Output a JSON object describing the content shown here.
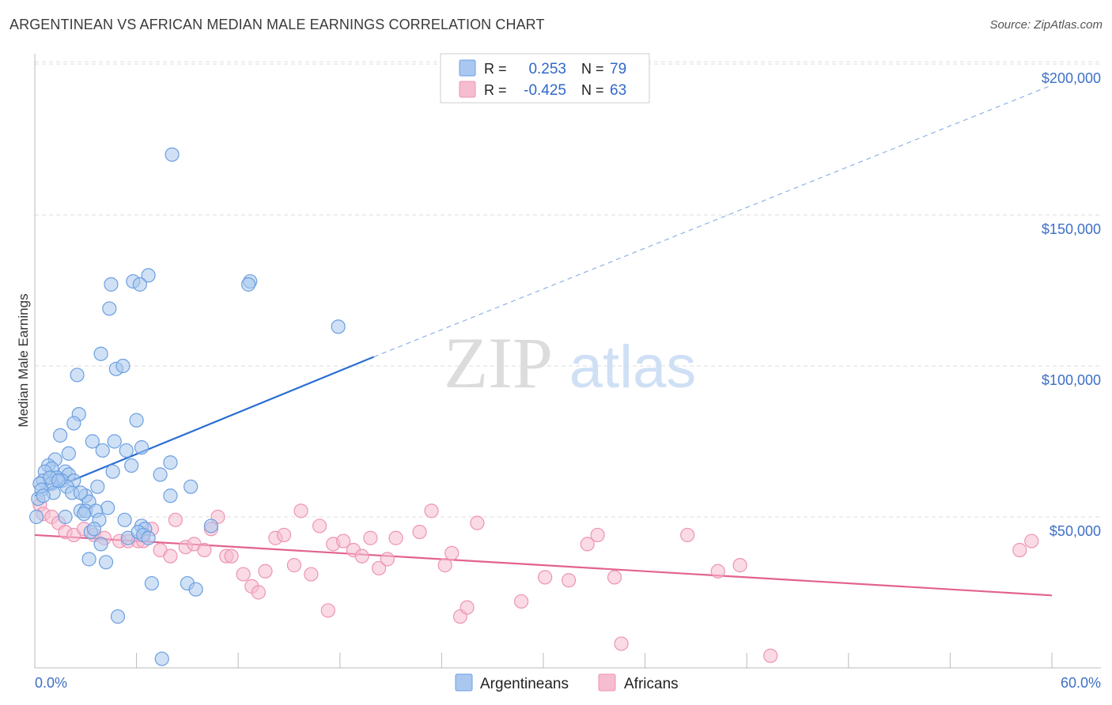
{
  "title": "ARGENTINEAN VS AFRICAN MEDIAN MALE EARNINGS CORRELATION CHART",
  "source": "Source: ZipAtlas.com",
  "watermark": {
    "zip": "ZIP",
    "atlas": "atlas"
  },
  "colors": {
    "blue_fill": "#aac8ef",
    "blue_stroke": "#6b9fe0",
    "blue_line": "#2a6ed2",
    "pink_fill": "#f6bcd0",
    "pink_stroke": "#ee94b2",
    "pink_line": "#e2628f",
    "grid": "#dddddd"
  },
  "chart_data": {
    "type": "scatter",
    "title": "ARGENTINEAN VS AFRICAN MEDIAN MALE EARNINGS CORRELATION CHART",
    "xlabel": "",
    "ylabel": "Median Male Earnings",
    "xlim": [
      0,
      60
    ],
    "ylim": [
      0,
      210000
    ],
    "x_tick_labels": [
      "0.0%",
      "60.0%"
    ],
    "y_ticks": [
      50000,
      100000,
      150000,
      200000
    ],
    "y_tick_labels": [
      "$50,000",
      "$100,000",
      "$150,000",
      "$200,000"
    ],
    "grid": true,
    "legend": {
      "position": "top-center",
      "rows": [
        {
          "r_label": "R =",
          "r_value": "0.253",
          "n_label": "N =",
          "n_value": "79"
        },
        {
          "r_label": "R =",
          "r_value": "-0.425",
          "n_label": "N =",
          "n_value": "63"
        }
      ]
    },
    "series": [
      {
        "name": "Argentineans",
        "r": 0.253,
        "n": 79,
        "trend": {
          "x0": 0,
          "y0": 57000,
          "x1": 20,
          "y1": 103000,
          "dash_to_x": 60,
          "dash_to_y": 193000
        },
        "points": [
          [
            8.1,
            170000
          ],
          [
            6.7,
            130000
          ],
          [
            5.8,
            128000
          ],
          [
            4.5,
            127000
          ],
          [
            6.2,
            127000
          ],
          [
            12.7,
            128000
          ],
          [
            12.6,
            127000
          ],
          [
            17.9,
            113000
          ],
          [
            4.4,
            119000
          ],
          [
            3.9,
            104000
          ],
          [
            2.5,
            97000
          ],
          [
            4.8,
            99000
          ],
          [
            5.2,
            100000
          ],
          [
            2.6,
            84000
          ],
          [
            6.0,
            82000
          ],
          [
            2.3,
            81000
          ],
          [
            1.5,
            77000
          ],
          [
            3.4,
            75000
          ],
          [
            4.7,
            75000
          ],
          [
            2.0,
            71000
          ],
          [
            4.0,
            72000
          ],
          [
            5.4,
            72000
          ],
          [
            6.3,
            73000
          ],
          [
            1.2,
            69000
          ],
          [
            0.8,
            67000
          ],
          [
            5.7,
            67000
          ],
          [
            8.0,
            68000
          ],
          [
            1.0,
            66000
          ],
          [
            0.6,
            65000
          ],
          [
            1.8,
            65000
          ],
          [
            2.0,
            64000
          ],
          [
            4.6,
            65000
          ],
          [
            7.4,
            64000
          ],
          [
            0.5,
            62000
          ],
          [
            1.3,
            63000
          ],
          [
            1.6,
            62000
          ],
          [
            2.3,
            62000
          ],
          [
            0.3,
            61000
          ],
          [
            1.0,
            61000
          ],
          [
            1.9,
            60000
          ],
          [
            3.7,
            60000
          ],
          [
            9.2,
            60000
          ],
          [
            0.4,
            59000
          ],
          [
            1.1,
            58000
          ],
          [
            2.2,
            58000
          ],
          [
            3.0,
            57000
          ],
          [
            8.0,
            57000
          ],
          [
            0.2,
            56000
          ],
          [
            0.5,
            57000
          ],
          [
            3.2,
            55000
          ],
          [
            4.3,
            53000
          ],
          [
            2.7,
            52000
          ],
          [
            3.0,
            52000
          ],
          [
            3.6,
            52000
          ],
          [
            2.9,
            51000
          ],
          [
            0.1,
            50000
          ],
          [
            1.8,
            50000
          ],
          [
            3.8,
            49000
          ],
          [
            5.3,
            49000
          ],
          [
            6.3,
            47000
          ],
          [
            10.4,
            47000
          ],
          [
            6.5,
            46000
          ],
          [
            3.3,
            45000
          ],
          [
            5.5,
            43000
          ],
          [
            6.1,
            45000
          ],
          [
            6.4,
            44000
          ],
          [
            3.9,
            41000
          ],
          [
            3.2,
            36000
          ],
          [
            4.2,
            35000
          ],
          [
            6.9,
            28000
          ],
          [
            9.0,
            28000
          ],
          [
            9.5,
            26000
          ],
          [
            4.9,
            17000
          ],
          [
            7.5,
            3000
          ],
          [
            0.9,
            63000
          ],
          [
            2.7,
            58000
          ],
          [
            1.4,
            62000
          ],
          [
            6.7,
            43000
          ],
          [
            3.5,
            46000
          ]
        ]
      },
      {
        "name": "Africans",
        "r": -0.425,
        "n": 63,
        "trend": {
          "x0": 0,
          "y0": 44000,
          "x1": 60,
          "y1": 24000
        },
        "points": [
          [
            0.3,
            54000
          ],
          [
            0.5,
            51000
          ],
          [
            1.0,
            50000
          ],
          [
            1.4,
            48000
          ],
          [
            1.8,
            45000
          ],
          [
            2.3,
            44000
          ],
          [
            2.9,
            46000
          ],
          [
            3.5,
            44000
          ],
          [
            4.1,
            43000
          ],
          [
            5.0,
            42000
          ],
          [
            5.5,
            42000
          ],
          [
            6.1,
            42000
          ],
          [
            6.4,
            42000
          ],
          [
            6.9,
            46000
          ],
          [
            7.4,
            39000
          ],
          [
            8.0,
            37000
          ],
          [
            8.3,
            49000
          ],
          [
            8.9,
            40000
          ],
          [
            9.4,
            41000
          ],
          [
            10.0,
            39000
          ],
          [
            10.4,
            46000
          ],
          [
            10.8,
            50000
          ],
          [
            11.3,
            37000
          ],
          [
            11.6,
            37000
          ],
          [
            12.3,
            31000
          ],
          [
            12.8,
            27000
          ],
          [
            13.2,
            25000
          ],
          [
            13.6,
            32000
          ],
          [
            14.2,
            43000
          ],
          [
            14.7,
            44000
          ],
          [
            15.3,
            34000
          ],
          [
            15.7,
            52000
          ],
          [
            16.3,
            31000
          ],
          [
            16.8,
            47000
          ],
          [
            17.3,
            19000
          ],
          [
            17.6,
            41000
          ],
          [
            18.2,
            42000
          ],
          [
            18.8,
            39000
          ],
          [
            19.3,
            37000
          ],
          [
            19.8,
            43000
          ],
          [
            20.3,
            33000
          ],
          [
            20.8,
            36000
          ],
          [
            21.3,
            43000
          ],
          [
            22.7,
            45000
          ],
          [
            23.4,
            52000
          ],
          [
            24.2,
            34000
          ],
          [
            24.6,
            38000
          ],
          [
            25.1,
            17000
          ],
          [
            25.5,
            20000
          ],
          [
            26.1,
            48000
          ],
          [
            28.7,
            22000
          ],
          [
            30.1,
            30000
          ],
          [
            31.5,
            29000
          ],
          [
            32.6,
            41000
          ],
          [
            33.2,
            44000
          ],
          [
            34.2,
            30000
          ],
          [
            34.6,
            8000
          ],
          [
            38.5,
            44000
          ],
          [
            40.3,
            32000
          ],
          [
            41.6,
            34000
          ],
          [
            43.4,
            4000
          ],
          [
            58.1,
            39000
          ],
          [
            58.8,
            42000
          ]
        ]
      }
    ]
  },
  "legend_bottom": {
    "blue": "Argentineans",
    "pink": "Africans"
  }
}
